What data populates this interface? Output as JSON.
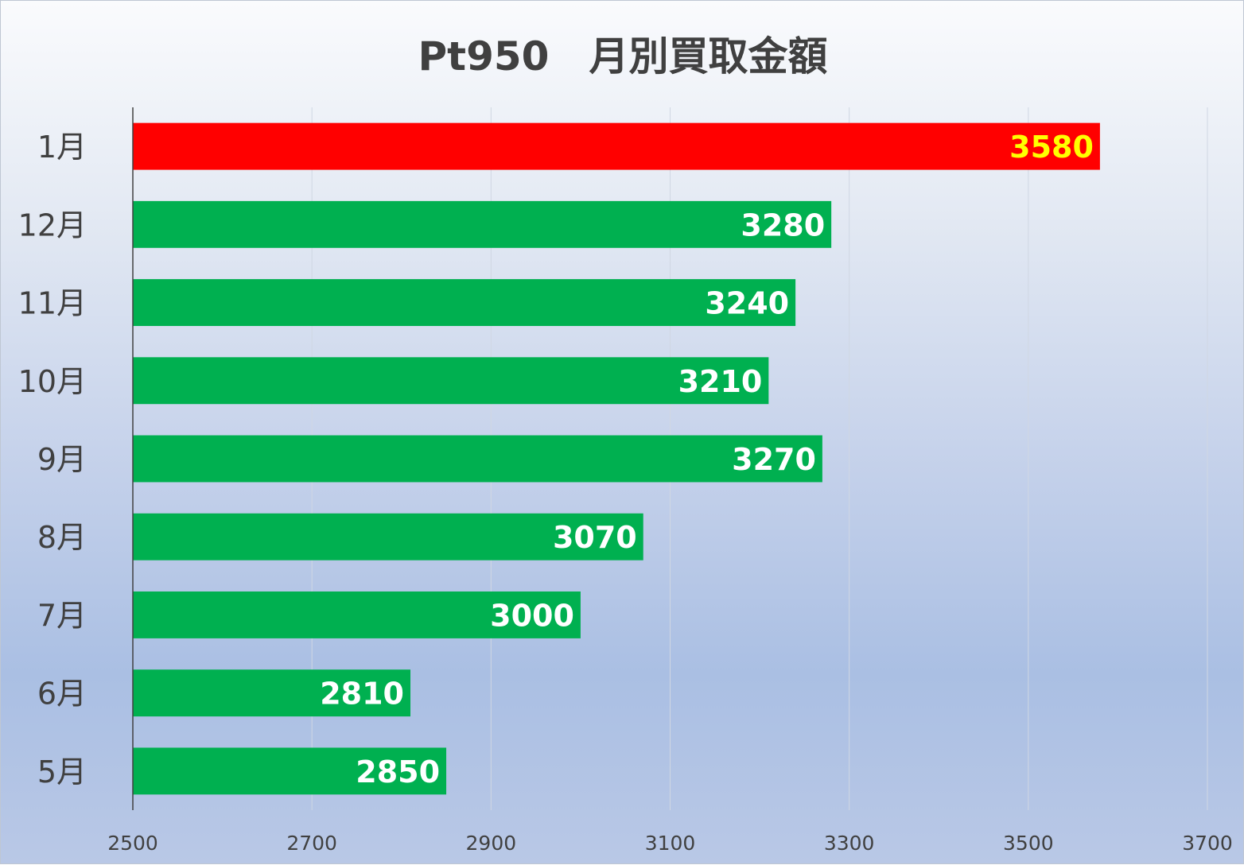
{
  "chart_data": {
    "type": "bar",
    "orientation": "horizontal",
    "title": "Pt950　月別買取金額",
    "categories": [
      "1月",
      "12月",
      "11月",
      "10月",
      "9月",
      "8月",
      "7月",
      "6月",
      "5月"
    ],
    "values": [
      3580,
      3280,
      3240,
      3210,
      3270,
      3070,
      3000,
      2810,
      2850
    ],
    "bar_colors": [
      "#ff0000",
      "#00b050",
      "#00b050",
      "#00b050",
      "#00b050",
      "#00b050",
      "#00b050",
      "#00b050",
      "#00b050"
    ],
    "label_colors": [
      "#ffff00",
      "#ffffff",
      "#ffffff",
      "#ffffff",
      "#ffffff",
      "#ffffff",
      "#ffffff",
      "#ffffff",
      "#ffffff"
    ],
    "xlim": [
      2500,
      3700
    ],
    "xticks": [
      2500,
      2700,
      2900,
      3100,
      3300,
      3500,
      3700
    ],
    "xtick_labels": [
      "2500",
      "2700",
      "2900",
      "3100",
      "3300",
      "3500",
      "3700"
    ],
    "xlabel": "",
    "ylabel": "",
    "grid": "vertical",
    "grid_color": "#d0d7e3",
    "axis_color": "#404040",
    "data_labels": "inside-end"
  }
}
